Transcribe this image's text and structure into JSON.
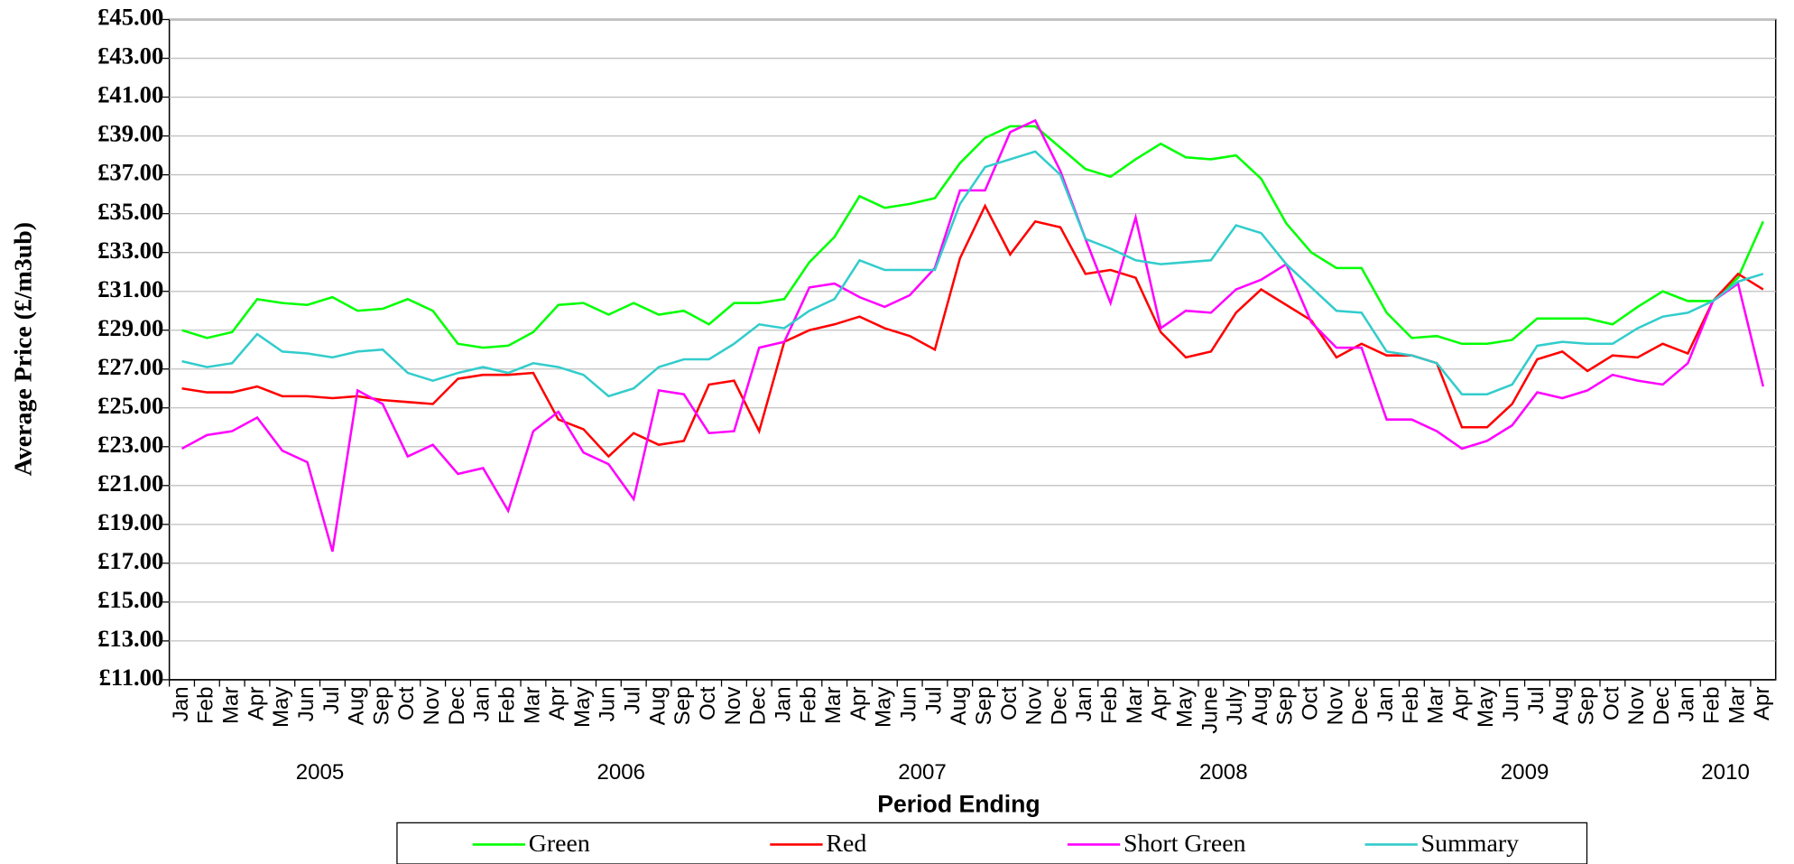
{
  "chart_data": {
    "type": "line",
    "x_label": "Period Ending",
    "y_label": "Average Price (£/m3ub)",
    "categories": [
      "Jan",
      "Feb",
      "Mar",
      "Apr",
      "May",
      "Jun",
      "Jul",
      "Aug",
      "Sep",
      "Oct",
      "Nov",
      "Dec",
      "Jan",
      "Feb",
      "Mar",
      "Apr",
      "May",
      "Jun",
      "Jul",
      "Aug",
      "Sep",
      "Oct",
      "Nov",
      "Dec",
      "Jan",
      "Feb",
      "Mar",
      "Apr",
      "May",
      "Jun",
      "Jul",
      "Aug",
      "Sep",
      "Oct",
      "Nov",
      "Dec",
      "Jan",
      "Feb",
      "Mar",
      "Apr",
      "May",
      "June",
      "July",
      "Aug",
      "Sep",
      "Oct",
      "Nov",
      "Dec",
      "Jan",
      "Feb",
      "Mar",
      "Apr",
      "May",
      "Jun",
      "Jul",
      "Aug",
      "Sep",
      "Oct",
      "Nov",
      "Dec",
      "Jan",
      "Feb",
      "Mar",
      "Apr"
    ],
    "years": [
      "2005",
      "2005",
      "2005",
      "2005",
      "2005",
      "2005",
      "2005",
      "2005",
      "2005",
      "2005",
      "2005",
      "2005",
      "2006",
      "2006",
      "2006",
      "2006",
      "2006",
      "2006",
      "2006",
      "2006",
      "2006",
      "2006",
      "2006",
      "2006",
      "2007",
      "2007",
      "2007",
      "2007",
      "2007",
      "2007",
      "2007",
      "2007",
      "2007",
      "2007",
      "2007",
      "2007",
      "2008",
      "2008",
      "2008",
      "2008",
      "2008",
      "2008",
      "2008",
      "2008",
      "2008",
      "2008",
      "2008",
      "2008",
      "2009",
      "2009",
      "2009",
      "2009",
      "2009",
      "2009",
      "2009",
      "2009",
      "2009",
      "2009",
      "2009",
      "2009",
      "2010",
      "2010",
      "2010",
      "2010"
    ],
    "series": [
      {
        "name": "Green",
        "color": "#00ff00",
        "values": [
          29.0,
          28.6,
          28.9,
          30.6,
          30.4,
          30.3,
          30.7,
          30.0,
          30.1,
          30.6,
          30.0,
          28.3,
          28.1,
          28.2,
          28.9,
          30.3,
          30.4,
          29.8,
          30.4,
          29.8,
          30.0,
          29.3,
          30.4,
          30.4,
          30.6,
          32.5,
          33.8,
          35.9,
          35.3,
          35.5,
          35.8,
          37.6,
          38.9,
          39.5,
          39.5,
          38.4,
          37.3,
          36.9,
          37.8,
          38.6,
          37.9,
          37.8,
          38.0,
          36.8,
          34.5,
          33.0,
          32.2,
          32.2,
          29.9,
          28.6,
          28.7,
          28.3,
          28.3,
          28.5,
          29.6,
          29.6,
          29.6,
          29.3,
          30.2,
          31.0,
          30.5,
          30.5,
          31.7,
          34.6
        ]
      },
      {
        "name": "Red",
        "color": "#ff0000",
        "values": [
          26.0,
          25.8,
          25.8,
          26.1,
          25.6,
          25.6,
          25.5,
          25.6,
          25.4,
          25.3,
          25.2,
          26.5,
          26.7,
          26.7,
          26.8,
          24.4,
          23.9,
          22.5,
          23.7,
          23.1,
          23.3,
          26.2,
          26.4,
          23.8,
          28.4,
          29.0,
          29.3,
          29.7,
          29.1,
          28.7,
          28.0,
          32.7,
          35.4,
          32.9,
          34.6,
          34.3,
          31.9,
          32.1,
          31.7,
          28.9,
          27.6,
          27.9,
          29.9,
          31.1,
          30.3,
          29.5,
          27.6,
          28.3,
          27.7,
          27.7,
          27.3,
          24.0,
          24.0,
          25.2,
          27.5,
          27.9,
          26.9,
          27.7,
          27.6,
          28.3,
          27.8,
          30.5,
          31.9,
          31.1
        ]
      },
      {
        "name": "Short Green",
        "color": "#ff00ff",
        "values": [
          22.9,
          23.6,
          23.8,
          24.5,
          22.8,
          22.2,
          17.6,
          25.9,
          25.2,
          22.5,
          23.1,
          21.6,
          21.9,
          19.7,
          23.8,
          24.8,
          22.7,
          22.1,
          20.3,
          25.9,
          25.7,
          23.7,
          23.8,
          28.1,
          28.4,
          31.2,
          31.4,
          30.7,
          30.2,
          30.8,
          32.2,
          36.2,
          36.2,
          39.2,
          39.8,
          37.2,
          33.7,
          30.4,
          34.8,
          29.1,
          30.0,
          29.9,
          31.1,
          31.6,
          32.4,
          29.4,
          28.1,
          28.1,
          24.4,
          24.4,
          23.8,
          22.9,
          23.3,
          24.1,
          25.8,
          25.5,
          25.9,
          26.7,
          26.4,
          26.2,
          27.3,
          30.5,
          31.4,
          26.1
        ]
      },
      {
        "name": "Summary",
        "color": "#33cccc",
        "values": [
          27.4,
          27.1,
          27.3,
          28.8,
          27.9,
          27.8,
          27.6,
          27.9,
          28.0,
          26.8,
          26.4,
          26.8,
          27.1,
          26.8,
          27.3,
          27.1,
          26.7,
          25.6,
          26.0,
          27.1,
          27.5,
          27.5,
          28.3,
          29.3,
          29.1,
          30.0,
          30.6,
          32.6,
          32.1,
          32.1,
          32.1,
          35.5,
          37.4,
          37.8,
          38.2,
          37.0,
          33.7,
          33.2,
          32.6,
          32.4,
          32.5,
          32.6,
          34.4,
          34.0,
          32.4,
          31.2,
          30.0,
          29.9,
          27.9,
          27.7,
          27.3,
          25.7,
          25.7,
          26.2,
          28.2,
          28.4,
          28.3,
          28.3,
          29.1,
          29.7,
          29.9,
          30.5,
          31.5,
          31.9
        ]
      }
    ],
    "ylim": [
      11,
      45
    ],
    "yticks": [
      {
        "value": 11,
        "label": "£11.00"
      },
      {
        "value": 13,
        "label": "£13.00"
      },
      {
        "value": 15,
        "label": "£15.00"
      },
      {
        "value": 17,
        "label": "£17.00"
      },
      {
        "value": 19,
        "label": "£19.00"
      },
      {
        "value": 21,
        "label": "£21.00"
      },
      {
        "value": 23,
        "label": "£23.00"
      },
      {
        "value": 25,
        "label": "£25.00"
      },
      {
        "value": 27,
        "label": "£27.00"
      },
      {
        "value": 29,
        "label": "£29.00"
      },
      {
        "value": 31,
        "label": "£31.00"
      },
      {
        "value": 33,
        "label": "£33.00"
      },
      {
        "value": 35,
        "label": "£35.00"
      },
      {
        "value": 37,
        "label": "£37.00"
      },
      {
        "value": 39,
        "label": "£39.00"
      },
      {
        "value": 41,
        "label": "£41.00"
      },
      {
        "value": 43,
        "label": "£43.00"
      },
      {
        "value": 45,
        "label": "£45.00"
      }
    ],
    "grid": true,
    "legend": "bottom"
  }
}
